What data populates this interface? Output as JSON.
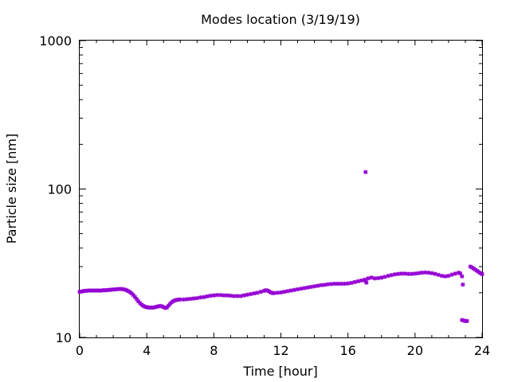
{
  "chart_data": {
    "type": "scatter",
    "title": "Modes location (3/19/19)",
    "xlabel": "Time [hour]",
    "ylabel": "Particle size [nm]",
    "xlim": [
      0,
      24
    ],
    "ylim": [
      10,
      1000
    ],
    "yscale": "log",
    "grid": false,
    "legend": "none",
    "marker_color": "#9400D3",
    "x_ticks": [
      "0",
      "4",
      "8",
      "12",
      "16",
      "20",
      "24"
    ],
    "y_ticks": [
      "10",
      "100",
      "1000"
    ],
    "series": [
      {
        "points": [
          [
            0.0,
            20.3
          ],
          [
            0.1,
            20.4
          ],
          [
            0.2,
            20.5
          ],
          [
            0.3,
            20.6
          ],
          [
            0.4,
            20.6
          ],
          [
            0.5,
            20.7
          ],
          [
            0.6,
            20.7
          ],
          [
            0.7,
            20.7
          ],
          [
            0.8,
            20.7
          ],
          [
            0.9,
            20.7
          ],
          [
            1.0,
            20.7
          ],
          [
            1.1,
            20.7
          ],
          [
            1.2,
            20.7
          ],
          [
            1.3,
            20.7
          ],
          [
            1.4,
            20.8
          ],
          [
            1.5,
            20.8
          ],
          [
            1.6,
            20.8
          ],
          [
            1.7,
            20.9
          ],
          [
            1.8,
            20.9
          ],
          [
            1.9,
            21.0
          ],
          [
            2.0,
            21.0
          ],
          [
            2.1,
            21.1
          ],
          [
            2.2,
            21.1
          ],
          [
            2.3,
            21.2
          ],
          [
            2.4,
            21.2
          ],
          [
            2.5,
            21.2
          ],
          [
            2.6,
            21.1
          ],
          [
            2.7,
            21.0
          ],
          [
            2.8,
            20.8
          ],
          [
            2.9,
            20.5
          ],
          [
            3.0,
            20.2
          ],
          [
            3.1,
            19.8
          ],
          [
            3.2,
            19.3
          ],
          [
            3.3,
            18.7
          ],
          [
            3.4,
            18.1
          ],
          [
            3.5,
            17.5
          ],
          [
            3.6,
            17.0
          ],
          [
            3.7,
            16.6
          ],
          [
            3.8,
            16.3
          ],
          [
            3.9,
            16.1
          ],
          [
            4.0,
            16.0
          ],
          [
            4.1,
            15.9
          ],
          [
            4.2,
            15.9
          ],
          [
            4.3,
            15.9
          ],
          [
            4.4,
            15.9
          ],
          [
            4.5,
            16.0
          ],
          [
            4.6,
            16.1
          ],
          [
            4.7,
            16.2
          ],
          [
            4.8,
            16.3
          ],
          [
            4.9,
            16.2
          ],
          [
            5.0,
            16.0
          ],
          [
            5.1,
            15.8
          ],
          [
            5.2,
            15.9
          ],
          [
            5.3,
            16.4
          ],
          [
            5.4,
            16.9
          ],
          [
            5.5,
            17.3
          ],
          [
            5.6,
            17.6
          ],
          [
            5.7,
            17.8
          ],
          [
            5.8,
            17.9
          ],
          [
            5.9,
            18.0
          ],
          [
            6.0,
            18.0
          ],
          [
            6.2,
            18.0
          ],
          [
            6.4,
            18.1
          ],
          [
            6.6,
            18.2
          ],
          [
            6.8,
            18.3
          ],
          [
            7.0,
            18.4
          ],
          [
            7.2,
            18.6
          ],
          [
            7.4,
            18.7
          ],
          [
            7.6,
            18.9
          ],
          [
            7.8,
            19.1
          ],
          [
            8.0,
            19.2
          ],
          [
            8.2,
            19.3
          ],
          [
            8.4,
            19.3
          ],
          [
            8.6,
            19.2
          ],
          [
            8.8,
            19.2
          ],
          [
            9.0,
            19.1
          ],
          [
            9.2,
            19.0
          ],
          [
            9.4,
            19.0
          ],
          [
            9.6,
            19.0
          ],
          [
            9.8,
            19.2
          ],
          [
            10.0,
            19.4
          ],
          [
            10.2,
            19.6
          ],
          [
            10.4,
            19.8
          ],
          [
            10.6,
            20.0
          ],
          [
            10.8,
            20.3
          ],
          [
            11.0,
            20.6
          ],
          [
            11.1,
            20.8
          ],
          [
            11.2,
            20.7
          ],
          [
            11.3,
            20.4
          ],
          [
            11.4,
            20.1
          ],
          [
            11.5,
            19.9
          ],
          [
            11.6,
            19.9
          ],
          [
            11.8,
            20.0
          ],
          [
            12.0,
            20.1
          ],
          [
            12.2,
            20.3
          ],
          [
            12.4,
            20.5
          ],
          [
            12.6,
            20.7
          ],
          [
            12.8,
            20.9
          ],
          [
            13.0,
            21.1
          ],
          [
            13.2,
            21.3
          ],
          [
            13.4,
            21.5
          ],
          [
            13.6,
            21.7
          ],
          [
            13.8,
            21.9
          ],
          [
            14.0,
            22.1
          ],
          [
            14.2,
            22.3
          ],
          [
            14.4,
            22.5
          ],
          [
            14.6,
            22.6
          ],
          [
            14.8,
            22.8
          ],
          [
            15.0,
            22.9
          ],
          [
            15.2,
            23.0
          ],
          [
            15.4,
            23.0
          ],
          [
            15.6,
            23.0
          ],
          [
            15.8,
            23.0
          ],
          [
            16.0,
            23.1
          ],
          [
            16.2,
            23.3
          ],
          [
            16.4,
            23.6
          ],
          [
            16.6,
            23.9
          ],
          [
            16.8,
            24.2
          ],
          [
            17.0,
            24.5
          ],
          [
            17.05,
            24.0
          ],
          [
            17.1,
            23.4
          ],
          [
            17.05,
            130.0
          ],
          [
            17.2,
            25.0
          ],
          [
            17.4,
            25.3
          ],
          [
            17.6,
            25.0
          ],
          [
            17.8,
            25.1
          ],
          [
            18.0,
            25.3
          ],
          [
            18.2,
            25.6
          ],
          [
            18.4,
            26.0
          ],
          [
            18.6,
            26.3
          ],
          [
            18.8,
            26.6
          ],
          [
            19.0,
            26.8
          ],
          [
            19.2,
            26.9
          ],
          [
            19.4,
            26.9
          ],
          [
            19.6,
            26.8
          ],
          [
            19.8,
            26.8
          ],
          [
            20.0,
            26.9
          ],
          [
            20.2,
            27.1
          ],
          [
            20.4,
            27.3
          ],
          [
            20.6,
            27.4
          ],
          [
            20.8,
            27.3
          ],
          [
            21.0,
            27.1
          ],
          [
            21.2,
            26.8
          ],
          [
            21.4,
            26.4
          ],
          [
            21.6,
            26.0
          ],
          [
            21.8,
            25.8
          ],
          [
            22.0,
            26.0
          ],
          [
            22.2,
            26.5
          ],
          [
            22.4,
            26.9
          ],
          [
            22.6,
            27.3
          ],
          [
            22.7,
            27.0
          ],
          [
            22.8,
            25.8
          ],
          [
            22.85,
            22.7
          ],
          [
            22.8,
            13.1
          ],
          [
            22.9,
            13.0
          ],
          [
            23.0,
            12.9
          ],
          [
            23.1,
            12.9
          ],
          [
            23.3,
            30.0
          ],
          [
            23.4,
            29.6
          ],
          [
            23.5,
            29.1
          ],
          [
            23.6,
            28.6
          ],
          [
            23.7,
            28.1
          ],
          [
            23.8,
            27.6
          ],
          [
            23.9,
            27.1
          ],
          [
            24.0,
            26.7
          ]
        ]
      }
    ]
  }
}
